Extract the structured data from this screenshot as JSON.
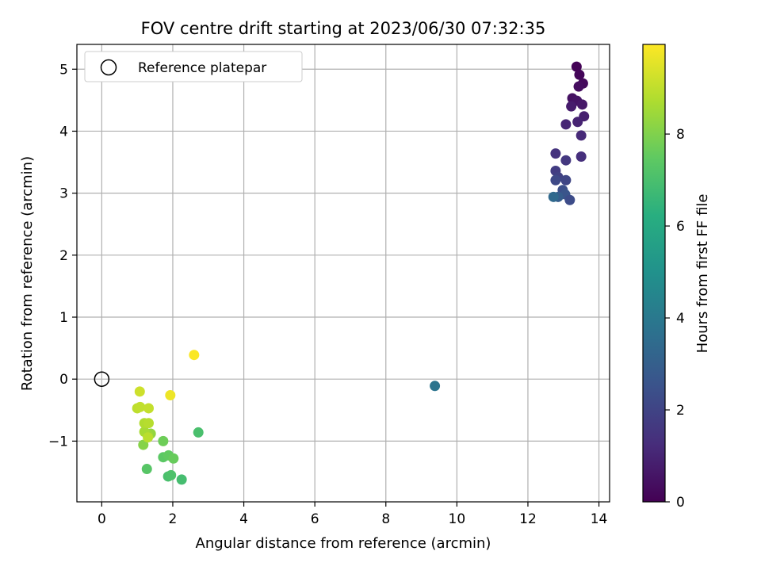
{
  "chart_data": {
    "type": "scatter",
    "title": "FOV centre drift starting at 2023/06/30 07:32:35",
    "xlabel": "Angular distance from reference (arcmin)",
    "ylabel": "Rotation from reference (arcmin)",
    "xlim": [
      -0.7,
      14.3
    ],
    "ylim": [
      -1.98,
      5.4
    ],
    "xticks": [
      0,
      2,
      4,
      6,
      8,
      10,
      12,
      14
    ],
    "yticks": [
      -1,
      0,
      1,
      2,
      3,
      4,
      5
    ],
    "grid": true,
    "legend": {
      "position": "top-left",
      "entries": [
        "Reference platepar"
      ]
    },
    "reference_point": {
      "x": 0,
      "y": 0,
      "label": "Reference platepar"
    },
    "colorbar": {
      "label": "Hours from first FF file",
      "colormap": "viridis",
      "min": 0,
      "max": 9.95,
      "ticks": [
        0,
        2,
        4,
        6,
        8
      ]
    },
    "series": [
      {
        "points": [
          {
            "x": 13.37,
            "y": 5.04,
            "c": 0.05
          },
          {
            "x": 13.45,
            "y": 4.91,
            "c": 0.15
          },
          {
            "x": 13.55,
            "y": 4.77,
            "c": 0.25
          },
          {
            "x": 13.43,
            "y": 4.72,
            "c": 0.35
          },
          {
            "x": 13.25,
            "y": 4.53,
            "c": 0.45
          },
          {
            "x": 13.38,
            "y": 4.49,
            "c": 0.55
          },
          {
            "x": 13.53,
            "y": 4.43,
            "c": 0.65
          },
          {
            "x": 13.22,
            "y": 4.4,
            "c": 0.75
          },
          {
            "x": 13.58,
            "y": 4.24,
            "c": 0.85
          },
          {
            "x": 13.4,
            "y": 4.15,
            "c": 0.95
          },
          {
            "x": 13.07,
            "y": 4.11,
            "c": 1.05
          },
          {
            "x": 13.5,
            "y": 3.93,
            "c": 1.15
          },
          {
            "x": 13.5,
            "y": 3.59,
            "c": 1.3
          },
          {
            "x": 12.78,
            "y": 3.64,
            "c": 1.45
          },
          {
            "x": 13.07,
            "y": 3.53,
            "c": 1.6
          },
          {
            "x": 12.78,
            "y": 3.36,
            "c": 1.75
          },
          {
            "x": 12.85,
            "y": 3.26,
            "c": 1.9
          },
          {
            "x": 13.07,
            "y": 3.21,
            "c": 2.05
          },
          {
            "x": 12.78,
            "y": 3.21,
            "c": 2.2
          },
          {
            "x": 12.98,
            "y": 3.05,
            "c": 2.4
          },
          {
            "x": 13.05,
            "y": 2.98,
            "c": 2.6
          },
          {
            "x": 12.85,
            "y": 2.94,
            "c": 2.9
          },
          {
            "x": 13.18,
            "y": 2.89,
            "c": 2.3
          },
          {
            "x": 12.72,
            "y": 2.94,
            "c": 3.4
          },
          {
            "x": 9.38,
            "y": -0.11,
            "c": 3.8
          },
          {
            "x": 2.25,
            "y": -1.62,
            "c": 6.9
          },
          {
            "x": 1.87,
            "y": -1.57,
            "c": 7.0
          },
          {
            "x": 1.95,
            "y": -1.55,
            "c": 7.1
          },
          {
            "x": 2.72,
            "y": -0.86,
            "c": 7.0
          },
          {
            "x": 1.27,
            "y": -1.45,
            "c": 7.3
          },
          {
            "x": 1.73,
            "y": -1.26,
            "c": 7.4
          },
          {
            "x": 1.88,
            "y": -1.23,
            "c": 7.5
          },
          {
            "x": 2.02,
            "y": -1.28,
            "c": 7.6
          },
          {
            "x": 1.73,
            "y": -1.0,
            "c": 7.7
          },
          {
            "x": 1.17,
            "y": -1.06,
            "c": 8.1
          },
          {
            "x": 1.38,
            "y": -0.88,
            "c": 8.3
          },
          {
            "x": 1.3,
            "y": -0.9,
            "c": 8.45
          },
          {
            "x": 1.2,
            "y": -0.85,
            "c": 8.6
          },
          {
            "x": 1.2,
            "y": -0.71,
            "c": 8.75
          },
          {
            "x": 1.32,
            "y": -0.71,
            "c": 8.85
          },
          {
            "x": 1.3,
            "y": -0.94,
            "c": 8.9
          },
          {
            "x": 1.0,
            "y": -0.47,
            "c": 8.95
          },
          {
            "x": 1.08,
            "y": -0.45,
            "c": 9.0
          },
          {
            "x": 1.32,
            "y": -0.47,
            "c": 9.05
          },
          {
            "x": 1.07,
            "y": -0.2,
            "c": 9.2
          },
          {
            "x": 1.93,
            "y": -0.26,
            "c": 9.7
          },
          {
            "x": 2.6,
            "y": 0.39,
            "c": 9.9
          }
        ]
      }
    ]
  }
}
